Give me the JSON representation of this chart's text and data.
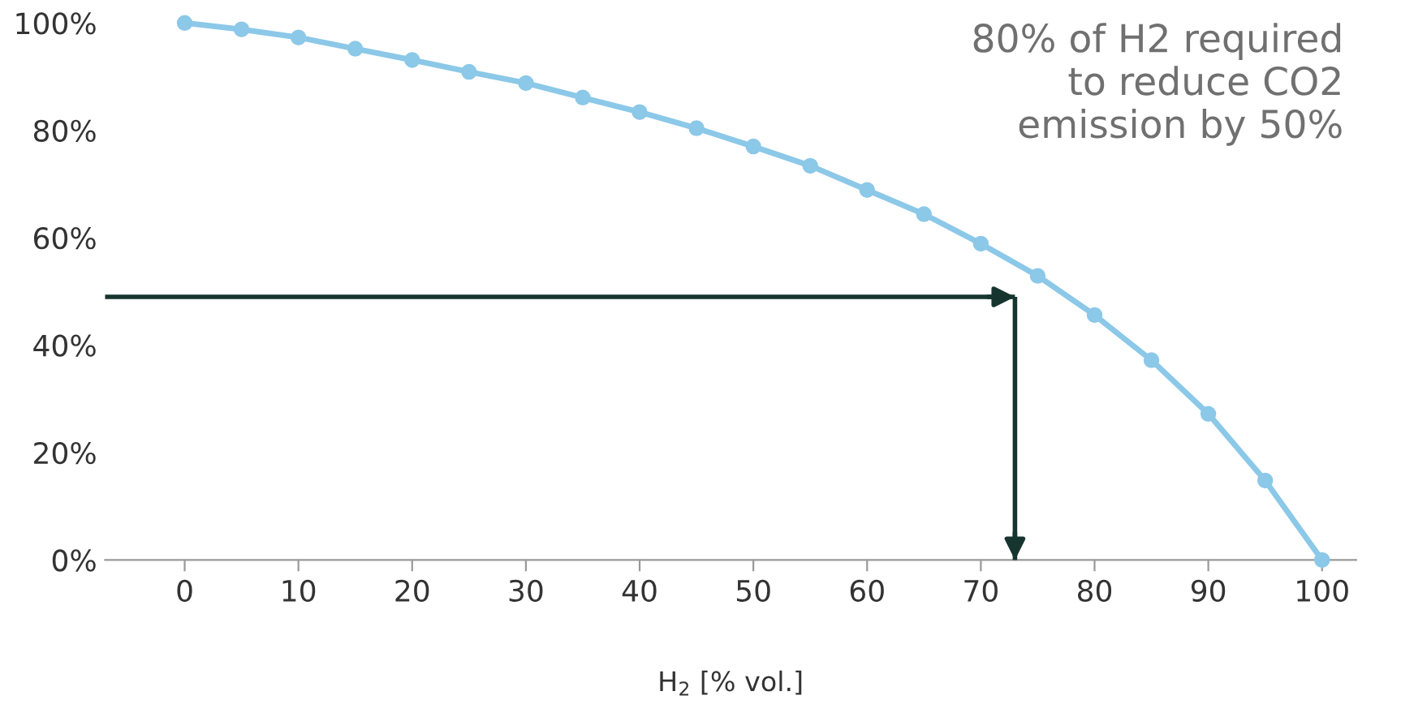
{
  "chart_data": {
    "type": "line",
    "xlabel": "H$_{2}$ [% vol.]",
    "x": [
      0,
      5,
      10,
      15,
      20,
      25,
      30,
      35,
      40,
      45,
      50,
      55,
      60,
      65,
      70,
      75,
      80,
      85,
      90,
      95,
      100
    ],
    "series": [
      {
        "color": "#8cc8e8",
        "values": [
          100,
          98.8,
          97.3,
          95.2,
          93.1,
          90.9,
          88.8,
          86.1,
          83.4,
          80.4,
          77.0,
          73.4,
          68.9,
          64.4,
          58.9,
          52.9,
          45.6,
          37.2,
          27.2,
          14.8,
          0
        ]
      }
    ],
    "marker": "circle",
    "xlim": [
      -7,
      103
    ],
    "ylim": [
      0,
      100
    ],
    "xticks": [
      0,
      10,
      20,
      30,
      40,
      50,
      60,
      70,
      80,
      90,
      100
    ],
    "yticks": [
      {
        "value": 0,
        "label": "0%"
      },
      {
        "value": 20,
        "label": "20%"
      },
      {
        "value": 40,
        "label": "40%"
      },
      {
        "value": 60,
        "label": "60%"
      },
      {
        "value": 80,
        "label": "80%"
      },
      {
        "value": 100,
        "label": "100%"
      }
    ],
    "grid": false,
    "legend": false,
    "ref_lines": [
      {
        "axis": "y",
        "value": 49,
        "color": "#16352e"
      },
      {
        "axis": "x",
        "value": 73,
        "color": "#16352e"
      }
    ],
    "annotations": [
      "80% of H2 required\nto reduce CO2\nemission by 50%"
    ]
  }
}
